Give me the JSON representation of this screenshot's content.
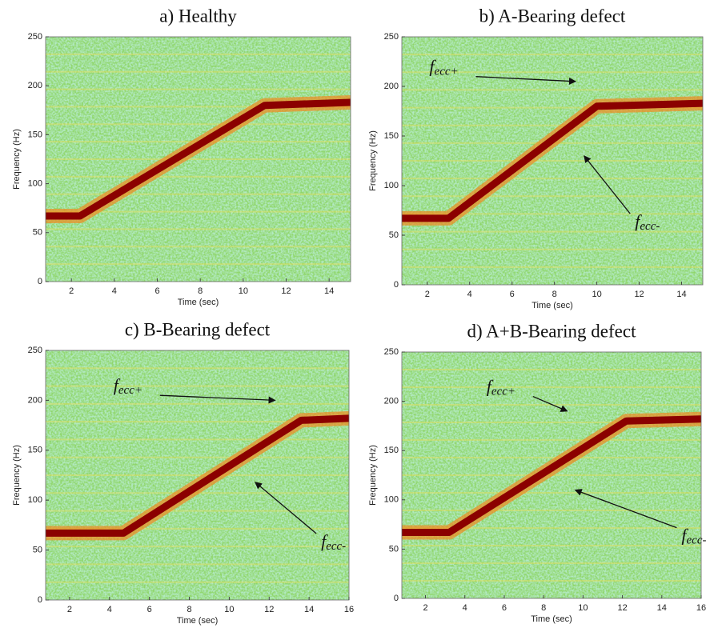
{
  "chart_data": [
    {
      "type": "spectrogram",
      "title": "a) Healthy",
      "x_label": "Time (sec)",
      "y_label": "Frequency (Hz)",
      "xlim": [
        0.8,
        15
      ],
      "ylim": [
        0,
        250
      ],
      "xticks": [
        2,
        4,
        6,
        8,
        10,
        12,
        14
      ],
      "yticks": [
        0,
        50,
        100,
        150,
        200,
        250
      ],
      "series": [
        {
          "color": "#8b0000",
          "x": [
            0.8,
            2.4,
            11,
            15
          ],
          "values": [
            67,
            67,
            180,
            183
          ]
        }
      ],
      "annotations": []
    },
    {
      "type": "spectrogram",
      "title": "b) A-Bearing defect",
      "x_label": "Time (sec)",
      "y_label": "Frequency (Hz)",
      "xlim": [
        0.8,
        15
      ],
      "ylim": [
        0,
        250
      ],
      "xticks": [
        2,
        4,
        6,
        8,
        10,
        12,
        14
      ],
      "yticks": [
        0,
        50,
        100,
        150,
        200,
        250
      ],
      "series": [
        {
          "color": "#8b0000",
          "x": [
            0.8,
            3,
            10,
            15
          ],
          "values": [
            67,
            67,
            180,
            183
          ]
        }
      ],
      "annotations": [
        {
          "text": "f",
          "sub": "ecc+",
          "x": 2.1,
          "y": 218,
          "xy": [
            9,
            205
          ]
        },
        {
          "text": "f",
          "sub": "ecc-",
          "x": 11.8,
          "y": 62,
          "xy": [
            9.4,
            130
          ]
        }
      ]
    },
    {
      "type": "spectrogram",
      "title": "c) B-Bearing defect",
      "x_label": "Time (sec)",
      "y_label": "Frequency (Hz)",
      "xlim": [
        0.8,
        16
      ],
      "ylim": [
        0,
        250
      ],
      "xticks": [
        2,
        4,
        6,
        8,
        10,
        12,
        14,
        16
      ],
      "yticks": [
        0,
        50,
        100,
        150,
        200,
        250
      ],
      "series": [
        {
          "color": "#8b0000",
          "x": [
            0.8,
            4.7,
            13.6,
            16
          ],
          "values": [
            67,
            67,
            180,
            182
          ]
        }
      ],
      "annotations": [
        {
          "text": "f",
          "sub": "ecc+",
          "x": 4.2,
          "y": 213,
          "xy": [
            12.3,
            200
          ]
        },
        {
          "text": "f",
          "sub": "ecc-",
          "x": 14.6,
          "y": 57,
          "xy": [
            11.3,
            118
          ]
        }
      ]
    },
    {
      "type": "spectrogram",
      "title": "d) A+B-Bearing defect",
      "x_label": "Time (sec)",
      "y_label": "Frequency (Hz)",
      "xlim": [
        0.8,
        16
      ],
      "ylim": [
        0,
        250
      ],
      "xticks": [
        2,
        4,
        6,
        8,
        10,
        12,
        14,
        16
      ],
      "yticks": [
        0,
        50,
        100,
        150,
        200,
        250
      ],
      "series": [
        {
          "color": "#8b0000",
          "x": [
            0.8,
            3.2,
            12.2,
            16
          ],
          "values": [
            67,
            67,
            180,
            182
          ]
        }
      ],
      "annotations": [
        {
          "text": "f",
          "sub": "ecc+",
          "x": 5.1,
          "y": 213,
          "xy": [
            9.2,
            190
          ]
        },
        {
          "text": "f",
          "sub": "ecc-",
          "x": 15,
          "y": 62,
          "xy": [
            9.6,
            110
          ]
        }
      ]
    }
  ]
}
